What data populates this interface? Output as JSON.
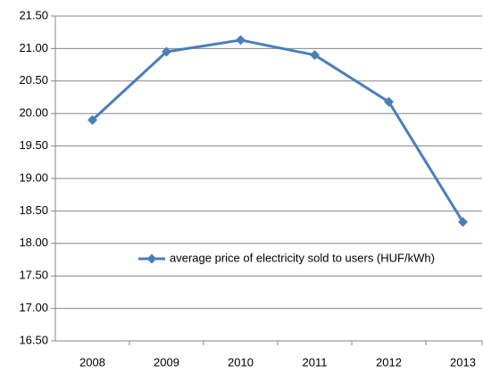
{
  "chart_data": {
    "type": "line",
    "categories": [
      "2008",
      "2009",
      "2010",
      "2011",
      "2012",
      "2013"
    ],
    "series": [
      {
        "name": "average price of electricity sold to users (HUF/kWh)",
        "color": "#4a7ebb",
        "values": [
          19.9,
          20.95,
          21.13,
          20.9,
          20.18,
          18.33
        ]
      }
    ],
    "ylim": [
      16.5,
      21.5
    ],
    "yticks": [
      {
        "value": 16.5,
        "label": "16.50"
      },
      {
        "value": 17,
        "label": "17.00"
      },
      {
        "value": 17.5,
        "label": "17.50"
      },
      {
        "value": 18,
        "label": "18.00"
      },
      {
        "value": 18.5,
        "label": "18.50"
      },
      {
        "value": 19,
        "label": "19.00"
      },
      {
        "value": 19.5,
        "label": "19.50"
      },
      {
        "value": 20,
        "label": "20.00"
      },
      {
        "value": 20.5,
        "label": "20.50"
      },
      {
        "value": 21,
        "label": "21.00"
      },
      {
        "value": 21.5,
        "label": "21.50"
      }
    ],
    "grid": true
  }
}
